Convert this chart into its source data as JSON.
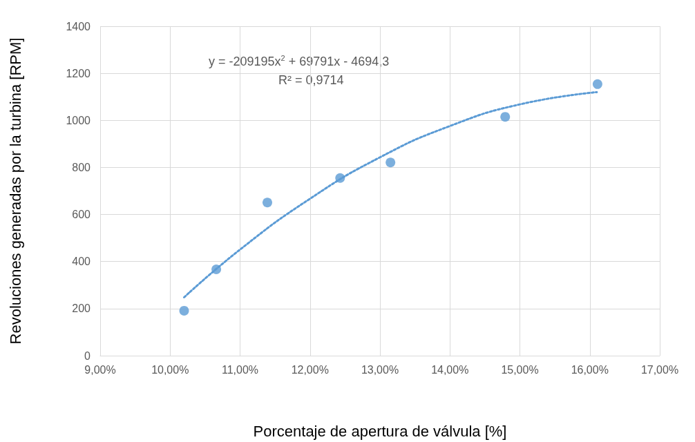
{
  "chart_data": {
    "type": "scatter",
    "xlabel": "Porcentaje de apertura de válvula [%]",
    "ylabel": "Revoluciones generadas por la turbina [RPM]",
    "annotations": [
      "y = -209195x$^{2}$ + 69791x - 4694,3",
      "R² = 0,9714"
    ],
    "xlim": [
      9,
      17
    ],
    "xticks": [
      {
        "value": 9,
        "label": "9,00%"
      },
      {
        "value": 10,
        "label": "10,00%"
      },
      {
        "value": 11,
        "label": "11,00%"
      },
      {
        "value": 12,
        "label": "12,00%"
      },
      {
        "value": 13,
        "label": "13,00%"
      },
      {
        "value": 14,
        "label": "14,00%"
      },
      {
        "value": 15,
        "label": "15,00%"
      },
      {
        "value": 16,
        "label": "16,00%"
      },
      {
        "value": 17,
        "label": "17,00%"
      }
    ],
    "ylim": [
      0,
      1400
    ],
    "yticks": [
      0,
      200,
      400,
      600,
      800,
      1000,
      1200,
      1400
    ],
    "grid": true,
    "marker": "circle",
    "series": [
      {
        "color": "#5b9bd5",
        "x": [
          10.2,
          10.66,
          11.39,
          12.43,
          13.15,
          14.79,
          16.11
        ],
        "values": [
          191,
          367,
          651,
          755,
          821,
          1015,
          1154
        ]
      },
      {
        "type": "line",
        "color": "#5b9bd5",
        "line_style": "dotted",
        "marker": "none",
        "x": [
          10.2,
          11,
          12,
          13,
          14,
          15,
          16.1
        ],
        "values": [
          248,
          451,
          667,
          843,
          976,
          1068,
          1120
        ]
      }
    ]
  }
}
